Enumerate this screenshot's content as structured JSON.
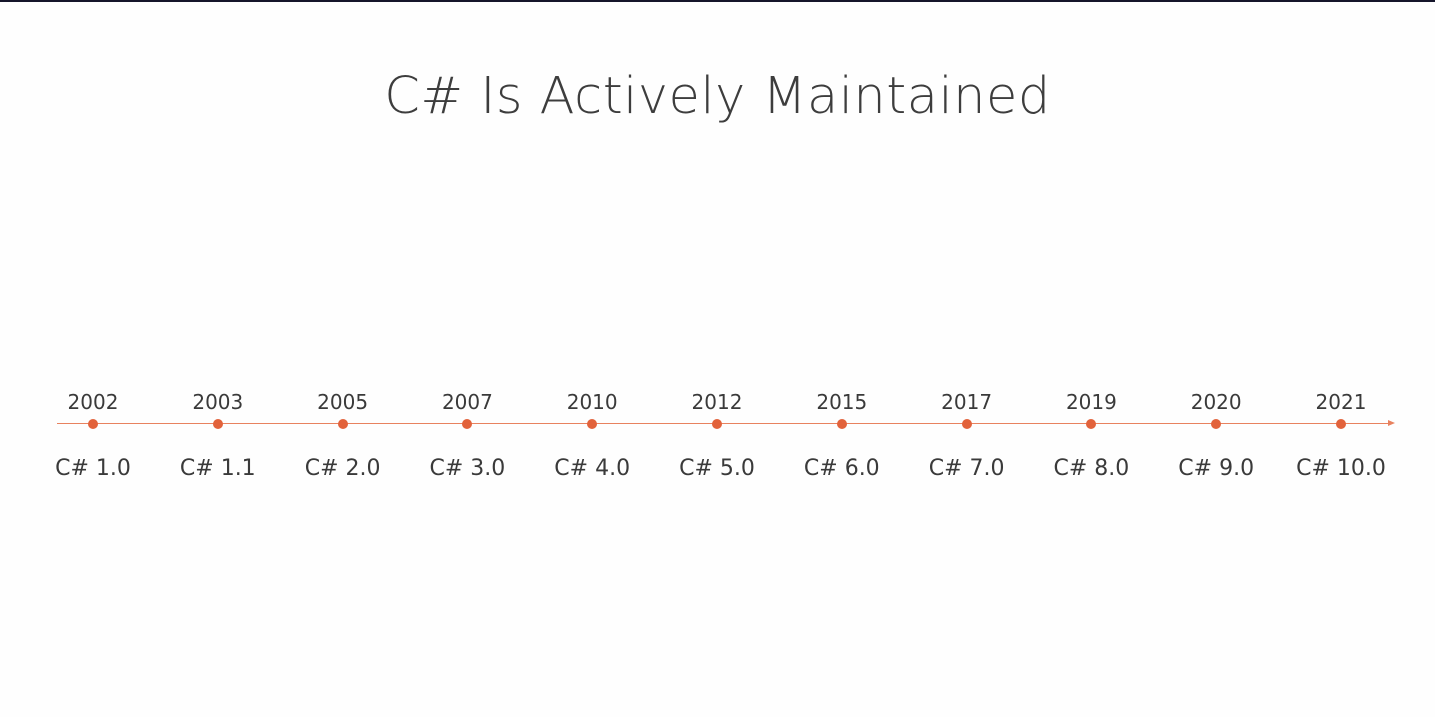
{
  "title": "C# Is Actively Maintained",
  "colors": {
    "accent": "#e2623b",
    "axis": "#e8825f",
    "top_rule": "#15152a",
    "text": "#3d3d3d"
  },
  "timeline": {
    "milestones": [
      {
        "year": "2002",
        "version": "C# 1.0"
      },
      {
        "year": "2003",
        "version": "C# 1.1"
      },
      {
        "year": "2005",
        "version": "C# 2.0"
      },
      {
        "year": "2007",
        "version": "C# 3.0"
      },
      {
        "year": "2010",
        "version": "C# 4.0"
      },
      {
        "year": "2012",
        "version": "C# 5.0"
      },
      {
        "year": "2015",
        "version": "C# 6.0"
      },
      {
        "year": "2017",
        "version": "C# 7.0"
      },
      {
        "year": "2019",
        "version": "C# 8.0"
      },
      {
        "year": "2020",
        "version": "C# 9.0"
      },
      {
        "year": "2021",
        "version": "C# 10.0"
      }
    ]
  }
}
